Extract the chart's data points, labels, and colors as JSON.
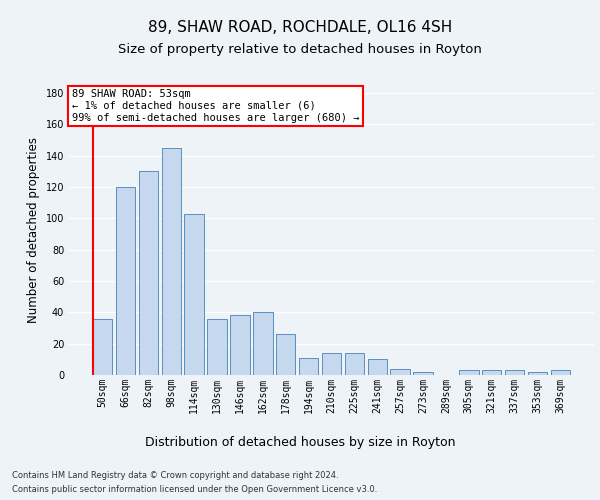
{
  "title1": "89, SHAW ROAD, ROCHDALE, OL16 4SH",
  "title2": "Size of property relative to detached houses in Royton",
  "xlabel": "Distribution of detached houses by size in Royton",
  "ylabel": "Number of detached properties",
  "bar_labels": [
    "50sqm",
    "66sqm",
    "82sqm",
    "98sqm",
    "114sqm",
    "130sqm",
    "146sqm",
    "162sqm",
    "178sqm",
    "194sqm",
    "210sqm",
    "225sqm",
    "241sqm",
    "257sqm",
    "273sqm",
    "289sqm",
    "305sqm",
    "321sqm",
    "337sqm",
    "353sqm",
    "369sqm"
  ],
  "bar_values": [
    36,
    120,
    130,
    145,
    103,
    36,
    38,
    40,
    26,
    11,
    14,
    14,
    10,
    4,
    2,
    0,
    3,
    3,
    3,
    2,
    3
  ],
  "bar_color": "#c5d8ed",
  "bar_edge_color": "#5a8fc0",
  "annotation_line1": "89 SHAW ROAD: 53sqm",
  "annotation_line2": "← 1% of detached houses are smaller (6)",
  "annotation_line3": "99% of semi-detached houses are larger (680) →",
  "annotation_box_color": "white",
  "annotation_box_edge": "red",
  "ylim": [
    0,
    185
  ],
  "yticks": [
    0,
    20,
    40,
    60,
    80,
    100,
    120,
    140,
    160,
    180
  ],
  "footer_line1": "Contains HM Land Registry data © Crown copyright and database right 2024.",
  "footer_line2": "Contains public sector information licensed under the Open Government Licence v3.0.",
  "bg_color": "#eef3f8",
  "grid_color": "#ffffff",
  "title1_fontsize": 11,
  "title2_fontsize": 9.5,
  "ylabel_fontsize": 8.5,
  "xlabel_fontsize": 9,
  "tick_fontsize": 7,
  "footer_fontsize": 6,
  "annotation_fontsize": 7.5
}
